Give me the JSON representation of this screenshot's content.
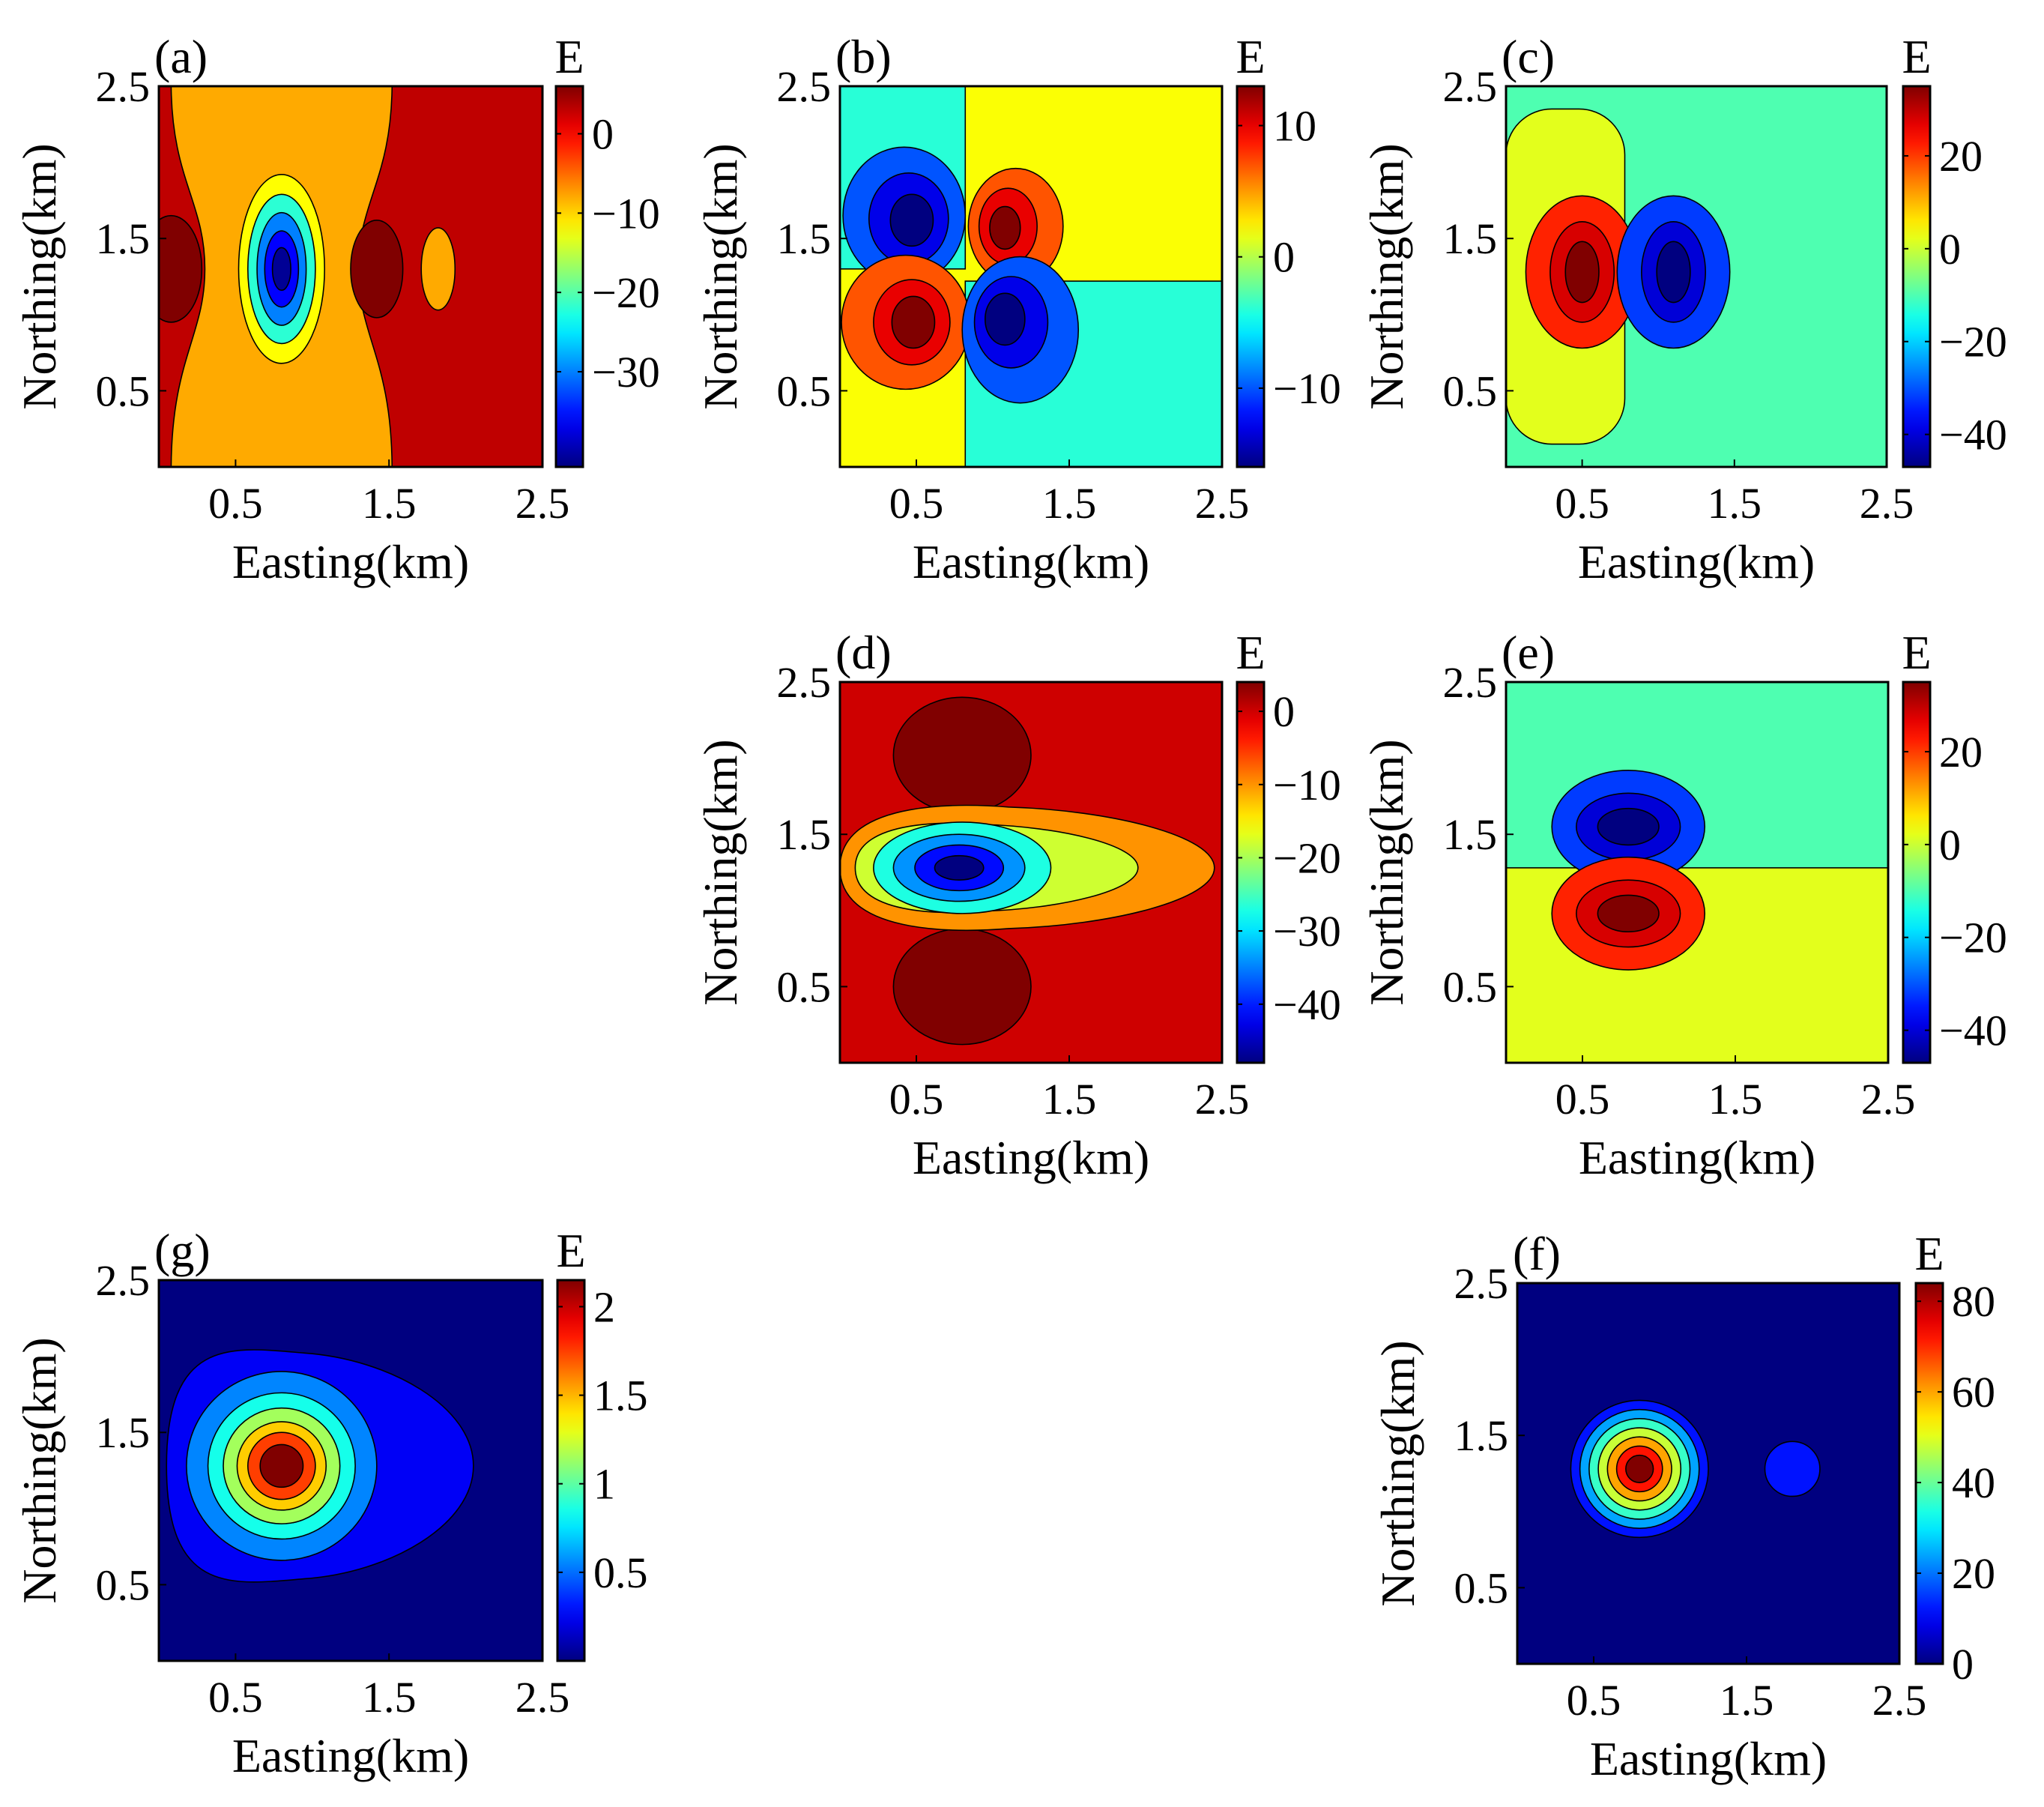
{
  "chart_data": [
    {
      "id": "a",
      "type": "contour",
      "panel_label": "(a)",
      "xlabel": "Easting(km)",
      "ylabel": "Northing(km)",
      "colorbar_title": "E",
      "xlim": [
        0,
        2.5
      ],
      "ylim": [
        0,
        2.5
      ],
      "x_ticks": [
        0.5,
        1.5,
        2.5
      ],
      "x_tick_labels": [
        "0.5",
        "1.5",
        "2.5"
      ],
      "y_ticks": [
        0.5,
        1.5,
        2.5
      ],
      "y_tick_labels": [
        "0.5",
        "1.5",
        "2.5"
      ],
      "clim": [
        -42,
        6
      ],
      "colorbar_ticks": [
        0,
        -10,
        -20,
        -30
      ],
      "colorbar_tick_labels": [
        "0",
        "−10",
        "−20",
        "−30"
      ],
      "background_value": 3,
      "features": [
        {
          "kind": "band",
          "x": 0.8,
          "rx": 0.72,
          "waist": 0.5,
          "value": -8
        },
        {
          "kind": "ellipse",
          "x": 0.8,
          "y": 1.3,
          "rx": 0.28,
          "ry": 0.62,
          "value": -12
        },
        {
          "kind": "ellipse",
          "x": 0.8,
          "y": 1.3,
          "rx": 0.22,
          "ry": 0.49,
          "value": -22
        },
        {
          "kind": "ellipse",
          "x": 0.8,
          "y": 1.3,
          "rx": 0.16,
          "ry": 0.37,
          "value": -30
        },
        {
          "kind": "ellipse",
          "x": 0.8,
          "y": 1.3,
          "rx": 0.11,
          "ry": 0.25,
          "value": -36
        },
        {
          "kind": "ellipse",
          "x": 0.8,
          "y": 1.3,
          "rx": 0.06,
          "ry": 0.14,
          "value": -41
        },
        {
          "kind": "ellipse",
          "x": 0.08,
          "y": 1.3,
          "rx": 0.2,
          "ry": 0.35,
          "value": 6
        },
        {
          "kind": "ellipse",
          "x": 1.42,
          "y": 1.3,
          "rx": 0.17,
          "ry": 0.32,
          "value": 6
        },
        {
          "kind": "ellipse",
          "x": 1.82,
          "y": 1.3,
          "rx": 0.11,
          "ry": 0.27,
          "value": -8
        }
      ]
    },
    {
      "id": "b",
      "type": "contour",
      "panel_label": "(b)",
      "xlabel": "Easting(km)",
      "ylabel": "Northing(km)",
      "colorbar_title": "E",
      "xlim": [
        0,
        2.5
      ],
      "ylim": [
        0,
        2.5
      ],
      "x_ticks": [
        0.5,
        1.5,
        2.5
      ],
      "x_tick_labels": [
        "0.5",
        "1.5",
        "2.5"
      ],
      "y_ticks": [
        0.5,
        1.5,
        2.5
      ],
      "y_tick_labels": [
        "0.5",
        "1.5",
        "2.5"
      ],
      "clim": [
        -16,
        13
      ],
      "colorbar_ticks": [
        10,
        0,
        -10
      ],
      "colorbar_tick_labels": [
        "10",
        "0",
        "−10"
      ],
      "background_value": 2,
      "features": [
        {
          "kind": "rect",
          "x0": 0,
          "x1": 0.82,
          "y0": 1.3,
          "y1": 2.5,
          "value": -4
        },
        {
          "kind": "rect",
          "x0": 0.82,
          "x1": 2.5,
          "y0": 0,
          "y1": 1.22,
          "value": -4
        },
        {
          "kind": "ellipse",
          "x": 0.42,
          "y": 1.65,
          "rx": 0.4,
          "ry": 0.45,
          "value": -10
        },
        {
          "kind": "ellipse",
          "x": 0.45,
          "y": 1.63,
          "rx": 0.26,
          "ry": 0.3,
          "value": -13
        },
        {
          "kind": "ellipse",
          "x": 0.47,
          "y": 1.62,
          "rx": 0.14,
          "ry": 0.17,
          "value": -16
        },
        {
          "kind": "ellipse",
          "x": 1.15,
          "y": 1.58,
          "rx": 0.31,
          "ry": 0.38,
          "value": 7
        },
        {
          "kind": "ellipse",
          "x": 1.1,
          "y": 1.58,
          "rx": 0.19,
          "ry": 0.25,
          "value": 10
        },
        {
          "kind": "ellipse",
          "x": 1.08,
          "y": 1.57,
          "rx": 0.1,
          "ry": 0.14,
          "value": 13
        },
        {
          "kind": "ellipse",
          "x": 0.43,
          "y": 0.95,
          "rx": 0.42,
          "ry": 0.44,
          "value": 7
        },
        {
          "kind": "ellipse",
          "x": 0.47,
          "y": 0.95,
          "rx": 0.25,
          "ry": 0.28,
          "value": 10
        },
        {
          "kind": "ellipse",
          "x": 0.48,
          "y": 0.95,
          "rx": 0.14,
          "ry": 0.17,
          "value": 13
        },
        {
          "kind": "ellipse",
          "x": 1.18,
          "y": 0.9,
          "rx": 0.38,
          "ry": 0.48,
          "value": -10
        },
        {
          "kind": "ellipse",
          "x": 1.12,
          "y": 0.95,
          "rx": 0.24,
          "ry": 0.3,
          "value": -13
        },
        {
          "kind": "ellipse",
          "x": 1.08,
          "y": 0.97,
          "rx": 0.13,
          "ry": 0.17,
          "value": -16
        }
      ]
    },
    {
      "id": "c",
      "type": "contour",
      "panel_label": "(c)",
      "xlabel": "Easting(km)",
      "ylabel": "Northing(km)",
      "colorbar_title": "E",
      "xlim": [
        0,
        2.5
      ],
      "ylim": [
        0,
        2.5
      ],
      "x_ticks": [
        0.5,
        1.5,
        2.5
      ],
      "x_tick_labels": [
        "0.5",
        "1.5",
        "2.5"
      ],
      "y_ticks": [
        0.5,
        1.5,
        2.5
      ],
      "y_tick_labels": [
        "0.5",
        "1.5",
        "2.5"
      ],
      "clim": [
        -47,
        35
      ],
      "colorbar_ticks": [
        20,
        0,
        -20,
        -40
      ],
      "colorbar_tick_labels": [
        "20",
        "0",
        "−20",
        "−40"
      ],
      "background_value": -10,
      "features": [
        {
          "kind": "rect",
          "x0": 0,
          "x1": 0.78,
          "y0": 0.15,
          "y1": 2.35,
          "round": true,
          "value": 2
        },
        {
          "kind": "ellipse",
          "x": 0.5,
          "y": 1.28,
          "rx": 0.37,
          "ry": 0.5,
          "value": 22
        },
        {
          "kind": "ellipse",
          "x": 0.5,
          "y": 1.28,
          "rx": 0.21,
          "ry": 0.33,
          "value": 28
        },
        {
          "kind": "ellipse",
          "x": 0.5,
          "y": 1.28,
          "rx": 0.11,
          "ry": 0.2,
          "value": 35
        },
        {
          "kind": "ellipse",
          "x": 1.1,
          "y": 1.28,
          "rx": 0.37,
          "ry": 0.5,
          "value": -32
        },
        {
          "kind": "ellipse",
          "x": 1.1,
          "y": 1.28,
          "rx": 0.21,
          "ry": 0.33,
          "value": -40
        },
        {
          "kind": "ellipse",
          "x": 1.1,
          "y": 1.28,
          "rx": 0.11,
          "ry": 0.2,
          "value": -47
        }
      ]
    },
    {
      "id": "d",
      "type": "contour",
      "panel_label": "(d)",
      "xlabel": "Easting(km)",
      "ylabel": "Northing(km)",
      "colorbar_title": "E",
      "xlim": [
        0,
        2.5
      ],
      "ylim": [
        0,
        2.5
      ],
      "x_ticks": [
        0.5,
        1.5,
        2.5
      ],
      "x_tick_labels": [
        "0.5",
        "1.5",
        "2.5"
      ],
      "y_ticks": [
        0.5,
        1.5,
        2.5
      ],
      "y_tick_labels": [
        "0.5",
        "1.5",
        "2.5"
      ],
      "clim": [
        -48,
        4
      ],
      "colorbar_ticks": [
        0,
        -10,
        -20,
        -30,
        -40
      ],
      "colorbar_tick_labels": [
        "0",
        "−10",
        "−20",
        "−30",
        "−40"
      ],
      "background_value": 0,
      "features": [
        {
          "kind": "ellipse",
          "x": 0.8,
          "y": 2.02,
          "rx": 0.45,
          "ry": 0.38,
          "value": 4
        },
        {
          "kind": "ellipse",
          "x": 0.8,
          "y": 0.5,
          "rx": 0.45,
          "ry": 0.38,
          "value": 4
        },
        {
          "kind": "tongue",
          "x0": 0,
          "x1": 2.45,
          "y": 1.28,
          "ry": 0.42,
          "value": -10
        },
        {
          "kind": "tongue",
          "x0": 0.1,
          "x1": 1.95,
          "y": 1.28,
          "ry": 0.3,
          "value": -18
        },
        {
          "kind": "ellipse",
          "x": 0.8,
          "y": 1.28,
          "rx": 0.58,
          "ry": 0.3,
          "value": -27
        },
        {
          "kind": "ellipse",
          "x": 0.78,
          "y": 1.28,
          "rx": 0.43,
          "ry": 0.22,
          "value": -34
        },
        {
          "kind": "ellipse",
          "x": 0.78,
          "y": 1.28,
          "rx": 0.29,
          "ry": 0.15,
          "value": -41
        },
        {
          "kind": "ellipse",
          "x": 0.78,
          "y": 1.28,
          "rx": 0.16,
          "ry": 0.08,
          "value": -48
        }
      ]
    },
    {
      "id": "e",
      "type": "contour",
      "panel_label": "(e)",
      "xlabel": "Easting(km)",
      "ylabel": "Northing(km)",
      "colorbar_title": "E",
      "xlim": [
        0,
        2.5
      ],
      "ylim": [
        0,
        2.5
      ],
      "x_ticks": [
        0.5,
        1.5,
        2.5
      ],
      "x_tick_labels": [
        "0.5",
        "1.5",
        "2.5"
      ],
      "y_ticks": [
        0.5,
        1.5,
        2.5
      ],
      "y_tick_labels": [
        "0.5",
        "1.5",
        "2.5"
      ],
      "clim": [
        -47,
        35
      ],
      "colorbar_ticks": [
        20,
        0,
        -20,
        -40
      ],
      "colorbar_tick_labels": [
        "20",
        "0",
        "−20",
        "−40"
      ],
      "background_value": -10,
      "features": [
        {
          "kind": "rect",
          "x0": 0,
          "x1": 2.5,
          "y0": 0,
          "y1": 1.28,
          "value": 2
        },
        {
          "kind": "ellipse",
          "x": 0.8,
          "y": 1.55,
          "rx": 0.5,
          "ry": 0.37,
          "value": -32
        },
        {
          "kind": "ellipse",
          "x": 0.8,
          "y": 1.55,
          "rx": 0.34,
          "ry": 0.22,
          "value": -40
        },
        {
          "kind": "ellipse",
          "x": 0.8,
          "y": 1.55,
          "rx": 0.2,
          "ry": 0.12,
          "value": -47
        },
        {
          "kind": "ellipse",
          "x": 0.8,
          "y": 0.98,
          "rx": 0.5,
          "ry": 0.37,
          "value": 22
        },
        {
          "kind": "ellipse",
          "x": 0.8,
          "y": 0.98,
          "rx": 0.34,
          "ry": 0.22,
          "value": 28
        },
        {
          "kind": "ellipse",
          "x": 0.8,
          "y": 0.98,
          "rx": 0.2,
          "ry": 0.12,
          "value": 35
        }
      ]
    },
    {
      "id": "g",
      "type": "contour",
      "panel_label": "(g)",
      "xlabel": "Easting(km)",
      "ylabel": "Northing(km)",
      "colorbar_title": "E",
      "xlim": [
        0,
        2.5
      ],
      "ylim": [
        0,
        2.5
      ],
      "x_ticks": [
        0.5,
        1.5,
        2.5
      ],
      "x_tick_labels": [
        "0.5",
        "1.5",
        "2.5"
      ],
      "y_ticks": [
        0.5,
        1.5,
        2.5
      ],
      "y_tick_labels": [
        "0.5",
        "1.5",
        "2.5"
      ],
      "clim": [
        0,
        2.15
      ],
      "colorbar_ticks": [
        2,
        1.5,
        1,
        0.5
      ],
      "colorbar_tick_labels": [
        "2",
        "1.5",
        "1",
        "0.5"
      ],
      "background_value": 0,
      "features": [
        {
          "kind": "tongue",
          "x0": 0.05,
          "x1": 2.05,
          "y": 1.28,
          "ry": 0.78,
          "value": 0.25
        },
        {
          "kind": "ellipse",
          "x": 0.8,
          "y": 1.28,
          "rx": 0.62,
          "ry": 0.62,
          "value": 0.55
        },
        {
          "kind": "ellipse",
          "x": 0.8,
          "y": 1.28,
          "rx": 0.48,
          "ry": 0.48,
          "value": 0.85
        },
        {
          "kind": "ellipse",
          "x": 0.8,
          "y": 1.28,
          "rx": 0.38,
          "ry": 0.38,
          "value": 1.15
        },
        {
          "kind": "ellipse",
          "x": 0.8,
          "y": 1.28,
          "rx": 0.29,
          "ry": 0.29,
          "value": 1.45
        },
        {
          "kind": "ellipse",
          "x": 0.8,
          "y": 1.28,
          "rx": 0.22,
          "ry": 0.22,
          "value": 1.75
        },
        {
          "kind": "ellipse",
          "x": 0.8,
          "y": 1.28,
          "rx": 0.14,
          "ry": 0.14,
          "value": 2.15
        }
      ]
    },
    {
      "id": "f",
      "type": "contour",
      "panel_label": "(f)",
      "xlabel": "Easting(km)",
      "ylabel": "Northing(km)",
      "colorbar_title": "E",
      "xlim": [
        0,
        2.5
      ],
      "ylim": [
        0,
        2.5
      ],
      "x_ticks": [
        0.5,
        1.5,
        2.5
      ],
      "x_tick_labels": [
        "0.5",
        "1.5",
        "2.5"
      ],
      "y_ticks": [
        0.5,
        1.5,
        2.5
      ],
      "y_tick_labels": [
        "0.5",
        "1.5",
        "2.5"
      ],
      "clim": [
        0,
        84
      ],
      "colorbar_ticks": [
        80,
        60,
        40,
        20,
        0
      ],
      "colorbar_tick_labels": [
        "80",
        "60",
        "40",
        "20",
        "0"
      ],
      "background_value": 0,
      "features": [
        {
          "kind": "ellipse",
          "x": 0.8,
          "y": 1.28,
          "rx": 0.45,
          "ry": 0.45,
          "value": 12
        },
        {
          "kind": "ellipse",
          "x": 0.8,
          "y": 1.28,
          "rx": 0.39,
          "ry": 0.39,
          "value": 24
        },
        {
          "kind": "ellipse",
          "x": 0.8,
          "y": 1.28,
          "rx": 0.33,
          "ry": 0.33,
          "value": 36
        },
        {
          "kind": "ellipse",
          "x": 0.8,
          "y": 1.28,
          "rx": 0.27,
          "ry": 0.27,
          "value": 48
        },
        {
          "kind": "ellipse",
          "x": 0.8,
          "y": 1.28,
          "rx": 0.21,
          "ry": 0.21,
          "value": 60
        },
        {
          "kind": "ellipse",
          "x": 0.8,
          "y": 1.28,
          "rx": 0.15,
          "ry": 0.15,
          "value": 72
        },
        {
          "kind": "ellipse",
          "x": 0.8,
          "y": 1.28,
          "rx": 0.09,
          "ry": 0.09,
          "value": 84
        },
        {
          "kind": "ellipse",
          "x": 1.8,
          "y": 1.28,
          "rx": 0.18,
          "ry": 0.18,
          "value": 12
        }
      ]
    }
  ]
}
